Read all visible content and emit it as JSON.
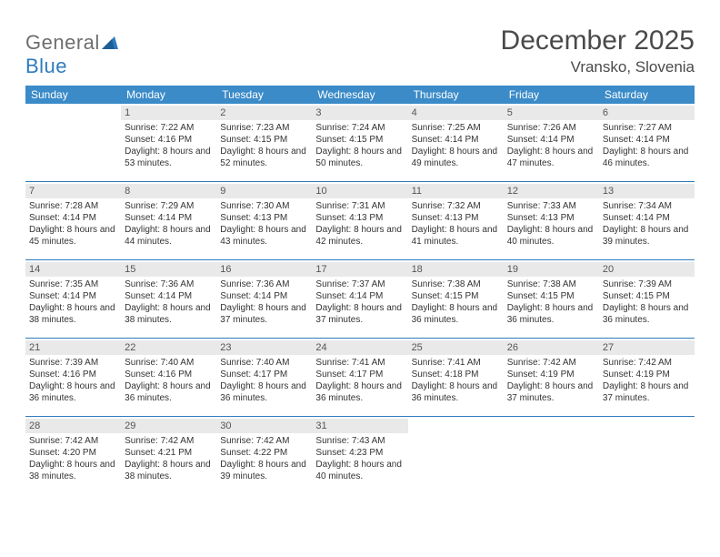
{
  "logo": {
    "word1": "General",
    "word2": "Blue"
  },
  "title": "December 2025",
  "location": "Vransko, Slovenia",
  "colors": {
    "header_bg": "#3b8bc8",
    "header_text": "#ffffff",
    "divider": "#2f7bbf",
    "daynum_bg": "#e9e9e9",
    "text": "#333333",
    "logo_gray": "#6e6e6e",
    "logo_blue": "#2f7bbf",
    "page_bg": "#ffffff"
  },
  "fonts": {
    "title_size_pt": 30,
    "location_size_pt": 17,
    "dow_size_pt": 12,
    "daynum_size_pt": 11,
    "body_size_pt": 10
  },
  "days_of_week": [
    "Sunday",
    "Monday",
    "Tuesday",
    "Wednesday",
    "Thursday",
    "Friday",
    "Saturday"
  ],
  "labels": {
    "sunrise": "Sunrise:",
    "sunset": "Sunset:",
    "daylight": "Daylight:"
  },
  "weeks": [
    [
      null,
      {
        "n": "1",
        "sunrise": "7:22 AM",
        "sunset": "4:16 PM",
        "daylight": "8 hours and 53 minutes."
      },
      {
        "n": "2",
        "sunrise": "7:23 AM",
        "sunset": "4:15 PM",
        "daylight": "8 hours and 52 minutes."
      },
      {
        "n": "3",
        "sunrise": "7:24 AM",
        "sunset": "4:15 PM",
        "daylight": "8 hours and 50 minutes."
      },
      {
        "n": "4",
        "sunrise": "7:25 AM",
        "sunset": "4:14 PM",
        "daylight": "8 hours and 49 minutes."
      },
      {
        "n": "5",
        "sunrise": "7:26 AM",
        "sunset": "4:14 PM",
        "daylight": "8 hours and 47 minutes."
      },
      {
        "n": "6",
        "sunrise": "7:27 AM",
        "sunset": "4:14 PM",
        "daylight": "8 hours and 46 minutes."
      }
    ],
    [
      {
        "n": "7",
        "sunrise": "7:28 AM",
        "sunset": "4:14 PM",
        "daylight": "8 hours and 45 minutes."
      },
      {
        "n": "8",
        "sunrise": "7:29 AM",
        "sunset": "4:14 PM",
        "daylight": "8 hours and 44 minutes."
      },
      {
        "n": "9",
        "sunrise": "7:30 AM",
        "sunset": "4:13 PM",
        "daylight": "8 hours and 43 minutes."
      },
      {
        "n": "10",
        "sunrise": "7:31 AM",
        "sunset": "4:13 PM",
        "daylight": "8 hours and 42 minutes."
      },
      {
        "n": "11",
        "sunrise": "7:32 AM",
        "sunset": "4:13 PM",
        "daylight": "8 hours and 41 minutes."
      },
      {
        "n": "12",
        "sunrise": "7:33 AM",
        "sunset": "4:13 PM",
        "daylight": "8 hours and 40 minutes."
      },
      {
        "n": "13",
        "sunrise": "7:34 AM",
        "sunset": "4:14 PM",
        "daylight": "8 hours and 39 minutes."
      }
    ],
    [
      {
        "n": "14",
        "sunrise": "7:35 AM",
        "sunset": "4:14 PM",
        "daylight": "8 hours and 38 minutes."
      },
      {
        "n": "15",
        "sunrise": "7:36 AM",
        "sunset": "4:14 PM",
        "daylight": "8 hours and 38 minutes."
      },
      {
        "n": "16",
        "sunrise": "7:36 AM",
        "sunset": "4:14 PM",
        "daylight": "8 hours and 37 minutes."
      },
      {
        "n": "17",
        "sunrise": "7:37 AM",
        "sunset": "4:14 PM",
        "daylight": "8 hours and 37 minutes."
      },
      {
        "n": "18",
        "sunrise": "7:38 AM",
        "sunset": "4:15 PM",
        "daylight": "8 hours and 36 minutes."
      },
      {
        "n": "19",
        "sunrise": "7:38 AM",
        "sunset": "4:15 PM",
        "daylight": "8 hours and 36 minutes."
      },
      {
        "n": "20",
        "sunrise": "7:39 AM",
        "sunset": "4:15 PM",
        "daylight": "8 hours and 36 minutes."
      }
    ],
    [
      {
        "n": "21",
        "sunrise": "7:39 AM",
        "sunset": "4:16 PM",
        "daylight": "8 hours and 36 minutes."
      },
      {
        "n": "22",
        "sunrise": "7:40 AM",
        "sunset": "4:16 PM",
        "daylight": "8 hours and 36 minutes."
      },
      {
        "n": "23",
        "sunrise": "7:40 AM",
        "sunset": "4:17 PM",
        "daylight": "8 hours and 36 minutes."
      },
      {
        "n": "24",
        "sunrise": "7:41 AM",
        "sunset": "4:17 PM",
        "daylight": "8 hours and 36 minutes."
      },
      {
        "n": "25",
        "sunrise": "7:41 AM",
        "sunset": "4:18 PM",
        "daylight": "8 hours and 36 minutes."
      },
      {
        "n": "26",
        "sunrise": "7:42 AM",
        "sunset": "4:19 PM",
        "daylight": "8 hours and 37 minutes."
      },
      {
        "n": "27",
        "sunrise": "7:42 AM",
        "sunset": "4:19 PM",
        "daylight": "8 hours and 37 minutes."
      }
    ],
    [
      {
        "n": "28",
        "sunrise": "7:42 AM",
        "sunset": "4:20 PM",
        "daylight": "8 hours and 38 minutes."
      },
      {
        "n": "29",
        "sunrise": "7:42 AM",
        "sunset": "4:21 PM",
        "daylight": "8 hours and 38 minutes."
      },
      {
        "n": "30",
        "sunrise": "7:42 AM",
        "sunset": "4:22 PM",
        "daylight": "8 hours and 39 minutes."
      },
      {
        "n": "31",
        "sunrise": "7:43 AM",
        "sunset": "4:23 PM",
        "daylight": "8 hours and 40 minutes."
      },
      null,
      null,
      null
    ]
  ]
}
